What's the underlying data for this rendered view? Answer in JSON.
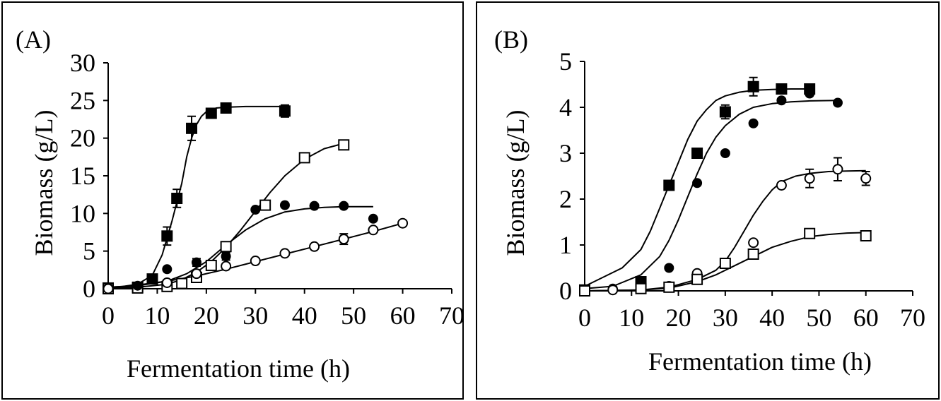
{
  "chart_data": [
    {
      "panel_label": "(A)",
      "type": "scatter",
      "xlabel": "Fermentation time (h)",
      "ylabel": "Biomass (g/L)",
      "xlim": [
        0,
        70
      ],
      "ylim": [
        0,
        30
      ],
      "xticks": [
        "0",
        "10",
        "20",
        "30",
        "40",
        "50",
        "60",
        "70"
      ],
      "yticks": [
        "0",
        "5",
        "10",
        "15",
        "20",
        "25",
        "30"
      ],
      "grid": false,
      "legend": "none",
      "series": [
        {
          "marker": "filled-square",
          "x": [
            0,
            6,
            9,
            12,
            14,
            17,
            21,
            24,
            36
          ],
          "y": [
            0.1,
            0.2,
            1.3,
            7.0,
            12.0,
            21.3,
            23.3,
            24.0,
            23.6
          ],
          "err": [
            0,
            0,
            0,
            1.2,
            1.2,
            1.6,
            0.5,
            0.6,
            0.8
          ],
          "fit_x": [
            0,
            3,
            6,
            9,
            11,
            13,
            15,
            16,
            17,
            18,
            19,
            20,
            22,
            24,
            28,
            32,
            36
          ],
          "fit_y": [
            0.2,
            0.3,
            0.6,
            1.8,
            4.5,
            9.0,
            14.0,
            17.5,
            20.0,
            21.8,
            22.9,
            23.5,
            24.0,
            24.1,
            24.2,
            24.2,
            24.2
          ]
        },
        {
          "marker": "open-square",
          "x": [
            0,
            6,
            12,
            15,
            18,
            21,
            24,
            32,
            40,
            48
          ],
          "y": [
            0,
            0.1,
            0.3,
            0.7,
            1.5,
            3.1,
            5.6,
            11.1,
            17.4,
            19.1
          ],
          "err": [
            0,
            0,
            0,
            0,
            0,
            0,
            0.5,
            0.5,
            0.6,
            0.6
          ],
          "fit_x": [
            0,
            6,
            12,
            15,
            18,
            21,
            24,
            27,
            30,
            33,
            36,
            40,
            44,
            48
          ],
          "fit_y": [
            0.1,
            0.2,
            0.6,
            1.2,
            2.2,
            3.6,
            5.5,
            7.8,
            10.3,
            12.8,
            15.0,
            17.2,
            18.6,
            19.3
          ]
        },
        {
          "marker": "filled-circle",
          "x": [
            0,
            6,
            12,
            18,
            24,
            30,
            36,
            42,
            48,
            54
          ],
          "y": [
            0.1,
            0.4,
            2.6,
            3.5,
            4.3,
            10.5,
            11.1,
            11.0,
            11.0,
            9.3
          ],
          "err": [
            0,
            0,
            0,
            0.5,
            0.5,
            0,
            0,
            0,
            0,
            0
          ],
          "fit_x": [
            0,
            6,
            12,
            16,
            20,
            24,
            28,
            32,
            36,
            40,
            44,
            48,
            54
          ],
          "fit_y": [
            0.2,
            0.4,
            1.0,
            2.0,
            3.6,
            5.8,
            7.8,
            9.3,
            10.2,
            10.6,
            10.8,
            10.9,
            10.9
          ]
        },
        {
          "marker": "open-circle",
          "x": [
            0,
            12,
            18,
            24,
            30,
            36,
            42,
            48,
            54,
            60
          ],
          "y": [
            0,
            0.8,
            2.0,
            3.0,
            3.7,
            4.7,
            5.6,
            6.6,
            7.8,
            8.7
          ],
          "err": [
            0,
            0,
            0,
            0,
            0,
            0,
            0,
            0.7,
            0,
            0
          ],
          "fit_x": [
            0,
            6,
            12,
            18,
            24,
            30,
            36,
            42,
            48,
            54,
            60
          ],
          "fit_y": [
            0.1,
            0.5,
            1.0,
            1.7,
            2.6,
            3.6,
            4.6,
            5.6,
            6.6,
            7.6,
            8.7
          ]
        }
      ]
    },
    {
      "panel_label": "(B)",
      "type": "scatter",
      "xlabel": "Fermentation time (h)",
      "ylabel": "Biomass (g/L)",
      "xlim": [
        0,
        70
      ],
      "ylim": [
        0,
        5
      ],
      "xticks": [
        "0",
        "10",
        "20",
        "30",
        "40",
        "50",
        "60",
        "70"
      ],
      "yticks": [
        "0",
        "1",
        "2",
        "3",
        "4",
        "5"
      ],
      "grid": false,
      "legend": "none",
      "series": [
        {
          "marker": "filled-square",
          "x": [
            0,
            12,
            18,
            24,
            30,
            36,
            42,
            48
          ],
          "y": [
            0.02,
            0.2,
            2.3,
            3.0,
            3.9,
            4.45,
            4.4,
            4.4
          ],
          "err": [
            0,
            0,
            0,
            0,
            0.15,
            0.2,
            0.08,
            0.08
          ],
          "fit_x": [
            0,
            4,
            8,
            12,
            14,
            16,
            18,
            20,
            22,
            24,
            26,
            28,
            30,
            33,
            36,
            40,
            44,
            48
          ],
          "fit_y": [
            0.1,
            0.3,
            0.5,
            0.9,
            1.3,
            1.8,
            2.3,
            2.8,
            3.3,
            3.7,
            3.95,
            4.15,
            4.25,
            4.33,
            4.37,
            4.39,
            4.4,
            4.4
          ]
        },
        {
          "marker": "filled-circle",
          "x": [
            0,
            6,
            18,
            24,
            30,
            36,
            42,
            48,
            54
          ],
          "y": [
            0.02,
            0.05,
            0.5,
            2.35,
            3.0,
            3.65,
            4.15,
            4.3,
            4.1
          ],
          "err": [
            0,
            0,
            0,
            0,
            0,
            0,
            0,
            0,
            0
          ],
          "fit_x": [
            0,
            6,
            12,
            16,
            18,
            20,
            22,
            24,
            26,
            28,
            30,
            33,
            36,
            40,
            44,
            48,
            54
          ],
          "fit_y": [
            0.05,
            0.1,
            0.35,
            0.75,
            1.1,
            1.55,
            2.05,
            2.55,
            3.0,
            3.35,
            3.6,
            3.85,
            4.0,
            4.08,
            4.12,
            4.14,
            4.15
          ]
        },
        {
          "marker": "open-circle",
          "x": [
            0,
            6,
            12,
            18,
            24,
            30,
            36,
            42,
            48,
            54,
            60
          ],
          "y": [
            0,
            0.02,
            0.05,
            0.1,
            0.38,
            0.6,
            1.05,
            2.3,
            2.45,
            2.65,
            2.45
          ],
          "err": [
            0,
            0,
            0,
            0,
            0,
            0,
            0,
            0,
            0.2,
            0.25,
            0.15
          ],
          "fit_x": [
            0,
            12,
            18,
            24,
            28,
            30,
            32,
            34,
            36,
            38,
            40,
            42,
            45,
            48,
            52,
            56,
            60
          ],
          "fit_y": [
            0.0,
            0.02,
            0.08,
            0.25,
            0.45,
            0.65,
            0.95,
            1.3,
            1.65,
            1.95,
            2.2,
            2.38,
            2.5,
            2.56,
            2.6,
            2.61,
            2.62
          ]
        },
        {
          "marker": "open-square",
          "x": [
            0,
            12,
            18,
            24,
            30,
            36,
            48,
            60
          ],
          "y": [
            0,
            0.05,
            0.08,
            0.25,
            0.6,
            0.8,
            1.25,
            1.2
          ],
          "err": [
            0,
            0,
            0,
            0,
            0,
            0.08,
            0.05,
            0.05
          ],
          "fit_x": [
            0,
            12,
            18,
            24,
            28,
            32,
            36,
            40,
            44,
            48,
            52,
            56,
            60
          ],
          "fit_y": [
            0.0,
            0.02,
            0.06,
            0.2,
            0.35,
            0.55,
            0.75,
            0.95,
            1.08,
            1.18,
            1.23,
            1.26,
            1.27
          ]
        }
      ]
    }
  ]
}
